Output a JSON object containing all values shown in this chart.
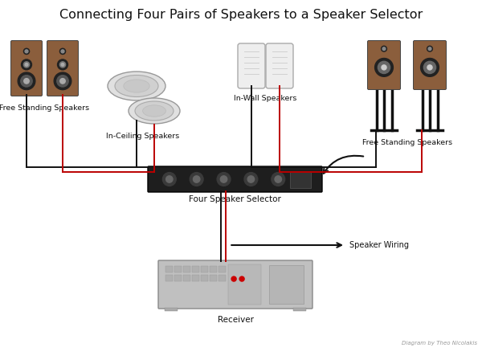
{
  "title": "Connecting Four Pairs of Speakers to a Speaker Selector",
  "title_fontsize": 11.5,
  "bg_color": "#ffffff",
  "diagram_credit": "Diagram by Theo Nicolakis",
  "labels": {
    "fs_left": "Free Standing Speakers",
    "ceiling": "In-Ceiling Speakers",
    "wall": "In-Wall Speakers",
    "fs_right": "Free Standing Speakers",
    "selector": "Four Speaker Selector",
    "receiver": "Receiver",
    "wiring": "Speaker Wiring"
  },
  "wire_black": "#111111",
  "wire_red": "#bb0000",
  "device_color": "#222222",
  "speaker_wood": "#8B5E3C",
  "speaker_dark": "#222222"
}
